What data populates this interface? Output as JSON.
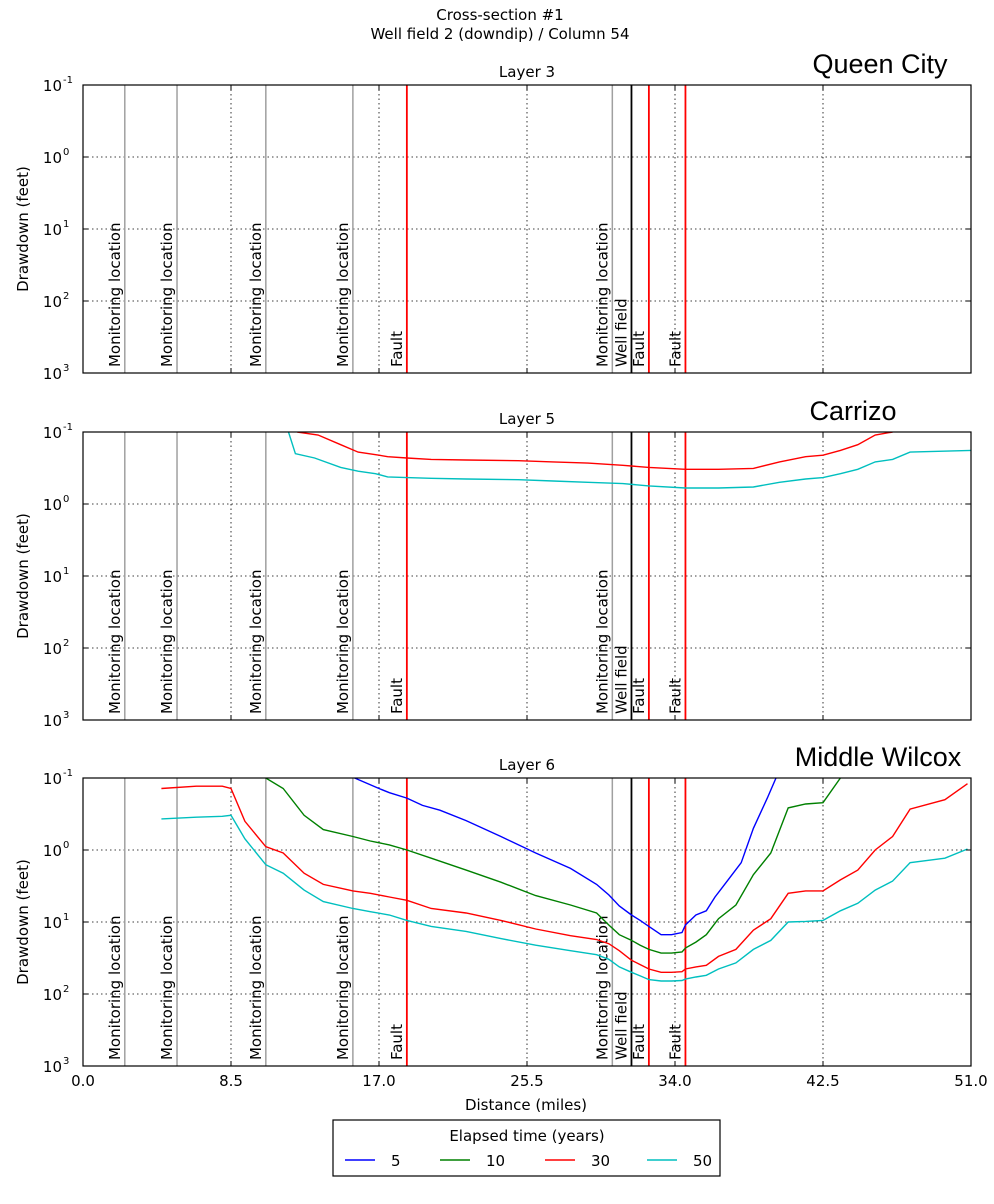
{
  "chart_data": {
    "type": "line",
    "title": "Cross-section #1",
    "subtitle": "Well field 2 (downdip) / Column 54",
    "xlabel": "Distance (miles)",
    "ylabel": "Drawdown (feet)",
    "xlim": [
      0,
      51
    ],
    "ylim": [
      0.1,
      1000
    ],
    "y_scale": "log",
    "y_inverted": true,
    "x_ticks": [
      "0.0",
      "8.5",
      "17.0",
      "25.5",
      "34.0",
      "42.5",
      "51.0"
    ],
    "y_ticks": [
      {
        "base": "10",
        "exp": "-1"
      },
      {
        "base": "10",
        "exp": "0"
      },
      {
        "base": "10",
        "exp": "1"
      },
      {
        "base": "10",
        "exp": "2"
      },
      {
        "base": "10",
        "exp": "3"
      }
    ],
    "grid": true,
    "markers": [
      {
        "x": 2.4,
        "label": "Monitoring location",
        "kind": "monitoring",
        "color": "#a0a0a0"
      },
      {
        "x": 5.4,
        "label": "Monitoring location",
        "kind": "monitoring",
        "color": "#a0a0a0"
      },
      {
        "x": 10.5,
        "label": "Monitoring location",
        "kind": "monitoring",
        "color": "#a0a0a0"
      },
      {
        "x": 15.5,
        "label": "Monitoring location",
        "kind": "monitoring",
        "color": "#a0a0a0"
      },
      {
        "x": 18.6,
        "label": "Fault",
        "kind": "fault",
        "color": "#ff0000"
      },
      {
        "x": 30.4,
        "label": "Monitoring location",
        "kind": "monitoring",
        "color": "#a0a0a0"
      },
      {
        "x": 31.5,
        "label": "Well field",
        "kind": "well",
        "color": "#000000"
      },
      {
        "x": 32.5,
        "label": "Fault",
        "kind": "fault",
        "color": "#ff0000"
      },
      {
        "x": 34.6,
        "label": "Fault",
        "kind": "fault",
        "color": "#ff0000"
      }
    ],
    "panels": [
      {
        "title": "Layer 3",
        "formation": "Queen City",
        "series": []
      },
      {
        "title": "Layer 5",
        "formation": "Carrizo",
        "series": [
          {
            "name": "30",
            "color": "#ff0000",
            "x": [
              12.3,
              13.5,
              14.8,
              15.8,
              17.0,
              17.5,
              18.6,
              20.0,
              22.0,
              25.0,
              27.0,
              29.0,
              31.0,
              32.5,
              34.6,
              36.5,
              38.5,
              40.0,
              41.5,
              42.5,
              43.5,
              44.5,
              45.5,
              46.5
            ],
            "y": [
              0.1,
              0.11,
              0.15,
              0.19,
              0.21,
              0.22,
              0.23,
              0.24,
              0.245,
              0.25,
              0.26,
              0.27,
              0.29,
              0.31,
              0.33,
              0.33,
              0.32,
              0.26,
              0.22,
              0.21,
              0.18,
              0.15,
              0.11,
              0.1
            ]
          },
          {
            "name": "50",
            "color": "#00bfbf",
            "x": [
              11.8,
              12.2,
              13.3,
              14.8,
              15.8,
              16.8,
              17.5,
              18.6,
              20.0,
              22.0,
              25.0,
              27.0,
              29.0,
              31.0,
              32.5,
              34.6,
              36.5,
              38.5,
              40.0,
              41.5,
              42.5,
              43.5,
              44.5,
              45.5,
              46.5,
              47.5,
              51.0
            ],
            "y": [
              0.1,
              0.2,
              0.23,
              0.31,
              0.35,
              0.38,
              0.42,
              0.43,
              0.44,
              0.45,
              0.46,
              0.48,
              0.5,
              0.52,
              0.56,
              0.6,
              0.6,
              0.58,
              0.5,
              0.45,
              0.43,
              0.38,
              0.33,
              0.26,
              0.24,
              0.19,
              0.18
            ]
          }
        ]
      },
      {
        "title": "Layer 6",
        "formation": "Middle Wilcox",
        "series": [
          {
            "name": "5",
            "color": "#0000ff",
            "x": [
              15.6,
              17.0,
              17.6,
              18.6,
              19.5,
              20.5,
              22.0,
              24.0,
              26.0,
              28.0,
              29.5,
              30.2,
              30.8,
              31.5,
              32.0,
              32.5,
              33.2,
              33.8,
              34.4,
              34.6,
              35.2,
              35.8,
              36.3,
              37.0,
              37.8,
              38.5,
              39.3,
              39.8
            ],
            "y": [
              0.1,
              0.14,
              0.16,
              0.19,
              0.24,
              0.28,
              0.39,
              0.65,
              1.1,
              1.8,
              3.0,
              4.2,
              6.0,
              8.0,
              9.5,
              11.5,
              15.0,
              15.0,
              14.0,
              11.0,
              8.0,
              7.0,
              4.5,
              2.7,
              1.5,
              0.5,
              0.19,
              0.1
            ]
          },
          {
            "name": "10",
            "color": "#008000",
            "x": [
              10.5,
              11.5,
              12.7,
              13.8,
              15.5,
              16.5,
              17.6,
              18.6,
              20.0,
              22.0,
              24.0,
              26.0,
              28.0,
              29.5,
              30.2,
              30.8,
              31.5,
              32.0,
              32.5,
              33.2,
              33.8,
              34.4,
              34.6,
              35.2,
              35.8,
              36.5,
              37.5,
              38.5,
              39.5,
              40.5,
              41.5,
              42.5,
              43.5
            ],
            "y": [
              0.1,
              0.14,
              0.33,
              0.52,
              0.65,
              0.75,
              0.85,
              1.0,
              1.3,
              1.9,
              2.8,
              4.3,
              5.8,
              7.5,
              11.0,
              15.0,
              18.0,
              21.0,
              24.0,
              27.0,
              27.0,
              26.0,
              23.0,
              19.0,
              15.0,
              9.0,
              5.8,
              2.2,
              1.1,
              0.26,
              0.23,
              0.22,
              0.1
            ]
          },
          {
            "name": "30",
            "color": "#ff0000",
            "x": [
              4.5,
              6.5,
              8.0,
              8.5,
              9.3,
              10.5,
              11.5,
              12.7,
              13.8,
              15.5,
              16.5,
              17.6,
              18.6,
              20.0,
              22.0,
              24.0,
              26.0,
              28.0,
              29.5,
              30.2,
              30.8,
              31.5,
              32.0,
              32.5,
              33.2,
              33.8,
              34.4,
              34.6,
              35.2,
              35.8,
              36.5,
              37.5,
              38.5,
              39.5,
              40.5,
              41.5,
              42.5,
              43.5,
              44.5,
              45.5,
              46.5,
              47.5,
              49.5,
              50.8
            ],
            "y": [
              0.14,
              0.13,
              0.13,
              0.14,
              0.4,
              0.9,
              1.1,
              2.1,
              3.0,
              3.7,
              4.0,
              4.5,
              5.0,
              6.5,
              7.5,
              9.5,
              12.5,
              15.5,
              17.5,
              20.0,
              25.0,
              34.0,
              39.0,
              45.0,
              50.0,
              50.0,
              49.0,
              45.0,
              42.0,
              40.0,
              30.0,
              24.0,
              13.0,
              9.0,
              4.0,
              3.7,
              3.7,
              2.6,
              1.9,
              1.0,
              0.65,
              0.27,
              0.2,
              0.12
            ]
          },
          {
            "name": "50",
            "color": "#00bfbf",
            "x": [
              4.5,
              6.5,
              8.0,
              8.5,
              9.3,
              10.5,
              11.5,
              12.7,
              13.8,
              15.5,
              16.5,
              17.6,
              18.6,
              20.0,
              22.0,
              24.0,
              26.0,
              28.0,
              29.5,
              30.2,
              30.8,
              31.5,
              32.0,
              32.5,
              33.2,
              33.8,
              34.4,
              34.6,
              35.2,
              35.8,
              36.5,
              37.5,
              38.5,
              39.5,
              40.5,
              41.5,
              42.5,
              43.5,
              44.5,
              45.5,
              46.5,
              47.5,
              49.5,
              50.8
            ],
            "y": [
              0.37,
              0.35,
              0.34,
              0.33,
              0.7,
              1.6,
              2.1,
              3.6,
              5.2,
              6.5,
              7.2,
              8.0,
              9.5,
              11.5,
              13.5,
              17.0,
              21.0,
              25.0,
              28.5,
              33.0,
              42.0,
              50.0,
              56.0,
              63.0,
              66.0,
              66.0,
              65.0,
              62.0,
              58.0,
              55.0,
              45.0,
              37.0,
              24.0,
              18.0,
              10.0,
              9.8,
              9.5,
              7.0,
              5.5,
              3.6,
              2.7,
              1.5,
              1.3,
              0.97
            ]
          }
        ]
      }
    ],
    "legend": {
      "title": "Elapsed time (years)",
      "placement": "bottom-center",
      "entries": [
        {
          "name": "5",
          "color": "#0000ff"
        },
        {
          "name": "10",
          "color": "#008000"
        },
        {
          "name": "30",
          "color": "#ff0000"
        },
        {
          "name": "50",
          "color": "#00bfbf"
        }
      ]
    }
  }
}
